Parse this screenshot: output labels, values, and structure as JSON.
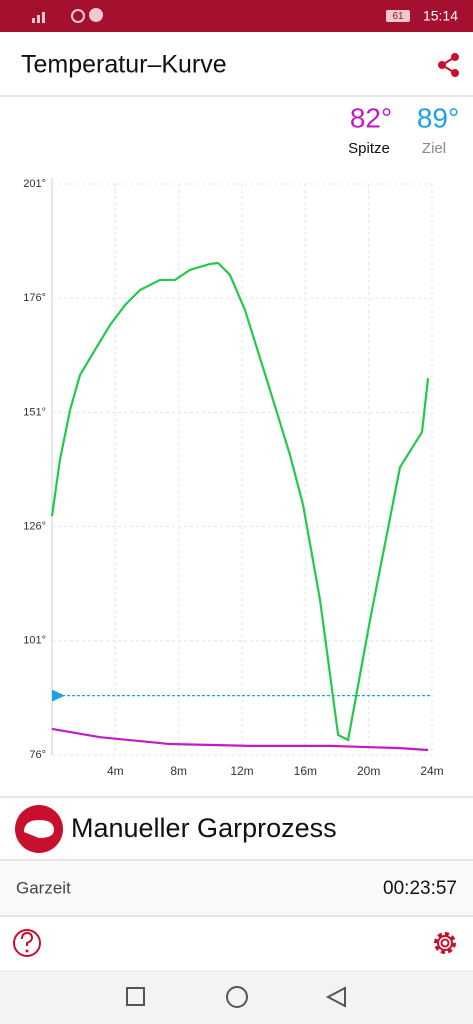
{
  "status_bar": {
    "battery": "61",
    "time": "15:14"
  },
  "header": {
    "title": "Temperatur–Kurve"
  },
  "stats": [
    {
      "value": "82°",
      "label": "Spitze"
    },
    {
      "value": "89°",
      "label": "Ziel"
    }
  ],
  "chart_data": {
    "type": "line",
    "xlim": [
      0,
      24
    ],
    "ylim": [
      76,
      201
    ],
    "xticks": [
      {
        "value": 4,
        "label": "4m"
      },
      {
        "value": 8,
        "label": "8m"
      },
      {
        "value": 12,
        "label": "12m"
      },
      {
        "value": 16,
        "label": "16m"
      },
      {
        "value": 20,
        "label": "20m"
      },
      {
        "value": 24,
        "label": "24m"
      }
    ],
    "yticks": [
      {
        "value": 76,
        "label": "76°"
      },
      {
        "value": 101,
        "label": "101°"
      },
      {
        "value": 126,
        "label": "126°"
      },
      {
        "value": 151,
        "label": "151°"
      },
      {
        "value": 176,
        "label": "176°"
      },
      {
        "value": 201,
        "label": "201°"
      }
    ],
    "grid": true,
    "target": 89,
    "target_color": "#1aa3e0",
    "series": [
      {
        "color": "#22c94a",
        "x": [
          0,
          0.5,
          1.14,
          1.77,
          2.72,
          3.66,
          4.61,
          5.56,
          6.82,
          7.77,
          8.72,
          9.98,
          10.49,
          11.24,
          12.19,
          13.77,
          15.03,
          15.86,
          16.93,
          18.07,
          18.7,
          20.09,
          21.98,
          23.37,
          23.75
        ],
        "values": [
          128.3,
          140.6,
          151.5,
          159.2,
          164.7,
          170.1,
          174.5,
          177.8,
          180,
          180,
          182.2,
          183.5,
          183.7,
          181.1,
          173.4,
          155.9,
          141.7,
          130.7,
          109.9,
          80.4,
          79.3,
          105.6,
          139,
          146.7,
          158.5
        ]
      },
      {
        "color": "#c41ac4",
        "x": [
          0,
          3.03,
          7.45,
          12.5,
          17.56,
          21.98,
          23.75
        ],
        "values": [
          81.7,
          79.9,
          78.4,
          78,
          78,
          77.5,
          77.1
        ]
      }
    ]
  },
  "process": {
    "title": "Manueller Garprozess"
  },
  "cook_time": {
    "label": "Garzeit",
    "value": "00:23:57"
  }
}
